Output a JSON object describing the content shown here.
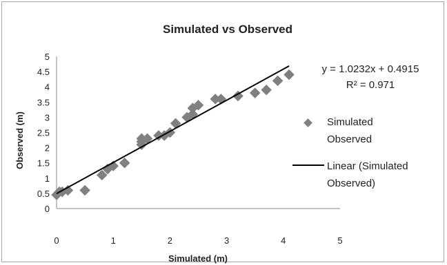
{
  "chart_data": {
    "type": "scatter",
    "title": "Simulated vs Observed",
    "xlabel": "Simulated (m)",
    "ylabel": "Observed (m)",
    "xlim": [
      0,
      5
    ],
    "ylim": [
      0,
      5
    ],
    "xticks": [
      0,
      1,
      2,
      3,
      4,
      5
    ],
    "yticks": [
      "0",
      "0.5",
      "1",
      "1.5",
      "2",
      "2.5",
      "3",
      "3.5",
      "4",
      "4.5",
      "5"
    ],
    "grid": false,
    "legend_position": "right",
    "series": [
      {
        "name": "Simulated Observed",
        "name_lines": [
          "Simulated",
          "Observed"
        ],
        "marker": "diamond",
        "color": "#808080",
        "points": [
          [
            0.0,
            0.45
          ],
          [
            0.05,
            0.55
          ],
          [
            0.1,
            0.55
          ],
          [
            0.2,
            0.6
          ],
          [
            0.5,
            0.6
          ],
          [
            0.8,
            1.1
          ],
          [
            0.9,
            1.3
          ],
          [
            1.0,
            1.4
          ],
          [
            1.2,
            1.5
          ],
          [
            1.5,
            2.1
          ],
          [
            1.5,
            2.2
          ],
          [
            1.5,
            2.3
          ],
          [
            1.6,
            2.3
          ],
          [
            1.8,
            2.4
          ],
          [
            1.9,
            2.4
          ],
          [
            2.0,
            2.5
          ],
          [
            2.1,
            2.8
          ],
          [
            2.3,
            3.0
          ],
          [
            2.4,
            3.1
          ],
          [
            2.4,
            3.3
          ],
          [
            2.5,
            3.4
          ],
          [
            2.8,
            3.6
          ],
          [
            2.9,
            3.6
          ],
          [
            3.2,
            3.7
          ],
          [
            3.5,
            3.8
          ],
          [
            3.7,
            3.9
          ],
          [
            3.9,
            4.2
          ],
          [
            4.1,
            4.4
          ]
        ]
      }
    ],
    "trendline": {
      "name_lines": [
        "Linear (Simulated",
        "Observed)"
      ],
      "slope": 1.0232,
      "intercept": 0.4915,
      "x_range": [
        0,
        4.1
      ],
      "color": "#000000",
      "equation": "y = 1.0232x + 0.4915",
      "r_squared": "R² = 0.971"
    }
  }
}
